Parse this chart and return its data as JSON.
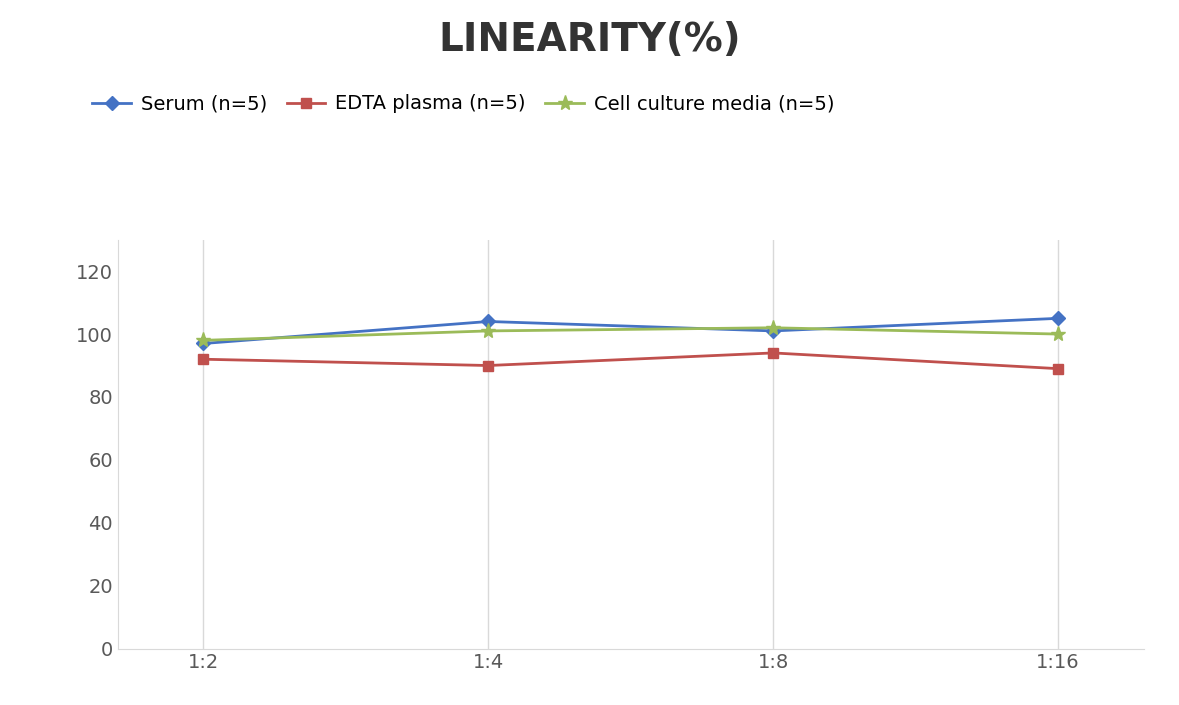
{
  "title": "LINEARITY(%)",
  "title_fontsize": 28,
  "title_fontweight": "bold",
  "x_labels": [
    "1:2",
    "1:4",
    "1:8",
    "1:16"
  ],
  "x_positions": [
    0,
    1,
    2,
    3
  ],
  "series": [
    {
      "label": "Serum (n=5)",
      "values": [
        97,
        104,
        101,
        105
      ],
      "color": "#4472C4",
      "marker": "D",
      "markersize": 7,
      "linewidth": 2
    },
    {
      "label": "EDTA plasma (n=5)",
      "values": [
        92,
        90,
        94,
        89
      ],
      "color": "#C0504D",
      "marker": "s",
      "markersize": 7,
      "linewidth": 2
    },
    {
      "label": "Cell culture media (n=5)",
      "values": [
        98,
        101,
        102,
        100
      ],
      "color": "#9BBB59",
      "marker": "*",
      "markersize": 11,
      "linewidth": 2
    }
  ],
  "ylim": [
    0,
    130
  ],
  "yticks": [
    0,
    20,
    40,
    60,
    80,
    100,
    120
  ],
  "grid_color": "#D9D9D9",
  "background_color": "#FFFFFF",
  "legend_fontsize": 14,
  "tick_fontsize": 14,
  "axis_label_color": "#595959"
}
